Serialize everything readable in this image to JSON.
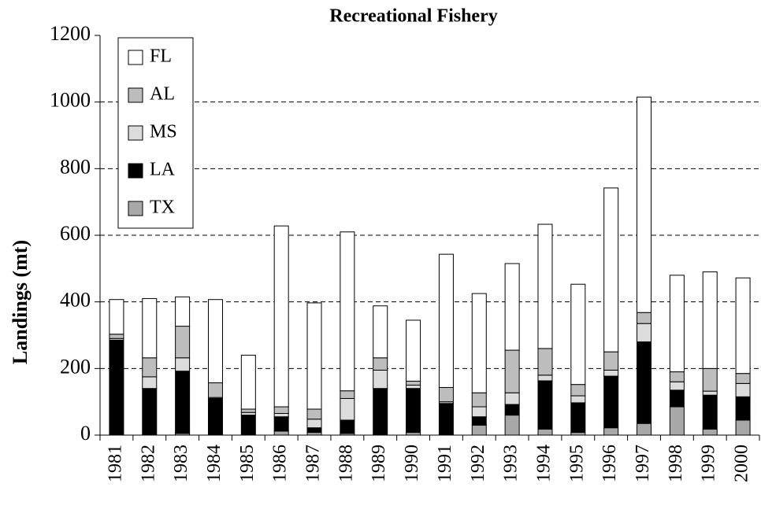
{
  "chart_data": {
    "type": "stacked-bar",
    "title": "Recreational Fishery",
    "y_label": "Landings (mt)",
    "categories": [
      "1981",
      "1982",
      "1983",
      "1984",
      "1985",
      "1986",
      "1987",
      "1988",
      "1989",
      "1990",
      "1991",
      "1992",
      "1993",
      "1994",
      "1995",
      "1996",
      "1997",
      "1998",
      "1999",
      "2000"
    ],
    "series": [
      {
        "name": "TX",
        "color": "#a8a8a8",
        "values": [
          0,
          0,
          5,
          0,
          0,
          12,
          8,
          5,
          0,
          8,
          0,
          30,
          60,
          18,
          8,
          22,
          35,
          85,
          18,
          45
        ]
      },
      {
        "name": "LA",
        "color": "#000000",
        "values": [
          285,
          140,
          187,
          110,
          60,
          43,
          14,
          40,
          140,
          132,
          95,
          25,
          32,
          145,
          89,
          155,
          245,
          50,
          102,
          70
        ]
      },
      {
        "name": "MS",
        "color": "#dcdcdc",
        "values": [
          5,
          35,
          40,
          3,
          8,
          10,
          26,
          65,
          55,
          10,
          5,
          30,
          35,
          17,
          21,
          18,
          55,
          25,
          12,
          40
        ]
      },
      {
        "name": "AL",
        "color": "#bdbdbd",
        "values": [
          13,
          57,
          95,
          44,
          10,
          20,
          30,
          23,
          37,
          12,
          43,
          42,
          128,
          80,
          34,
          55,
          33,
          30,
          68,
          30
        ]
      },
      {
        "name": "FL",
        "color": "#ffffff",
        "values": [
          104,
          178,
          88,
          250,
          162,
          543,
          319,
          477,
          156,
          183,
          400,
          298,
          260,
          373,
          301,
          492,
          647,
          290,
          290,
          287
        ]
      }
    ],
    "ylim": [
      0,
      1200
    ],
    "yticks": [
      0,
      200,
      400,
      600,
      800,
      1000,
      1200
    ],
    "grid": true,
    "legend": "top-left"
  }
}
